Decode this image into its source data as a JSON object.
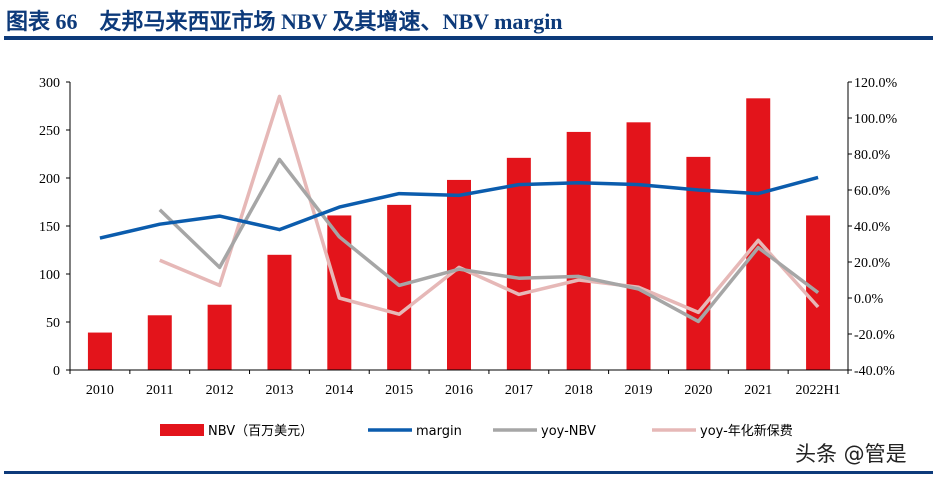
{
  "title": "图表 66　友邦马来西亚市场 NBV 及其增速、NBV margin",
  "watermark": "头条 @管是",
  "chart_data": {
    "type": "bar+line",
    "title": "",
    "categories": [
      "2010",
      "2011",
      "2012",
      "2013",
      "2014",
      "2015",
      "2016",
      "2017",
      "2018",
      "2019",
      "2020",
      "2021",
      "2022H1"
    ],
    "left_axis": {
      "ylim": [
        0,
        300
      ],
      "ticks": [
        "0",
        "50",
        "100",
        "150",
        "200",
        "250",
        "300"
      ]
    },
    "right_axis": {
      "ylim": [
        -40,
        120
      ],
      "ticks": [
        "-40.0%",
        "-20.0%",
        "0.0%",
        "20.0%",
        "40.0%",
        "60.0%",
        "80.0%",
        "100.0%",
        "120.0%"
      ]
    },
    "grid": false,
    "legend_position": "bottom",
    "series": [
      {
        "name": "NBV（百万美元）",
        "type": "bar",
        "axis": "left",
        "color": "#e3141b",
        "values": [
          39,
          57,
          68,
          120,
          161,
          172,
          198,
          221,
          248,
          258,
          222,
          283,
          161
        ]
      },
      {
        "name": "margin",
        "type": "line",
        "axis": "right",
        "color": "#0b5cad",
        "values": [
          33.3,
          41,
          45.5,
          38,
          50.5,
          58,
          57,
          63,
          64,
          63,
          60,
          58,
          67
        ]
      },
      {
        "name": "yoy-NBV",
        "type": "line",
        "axis": "right",
        "color": "#a6a6a6",
        "values": [
          null,
          49,
          17,
          77,
          34,
          7,
          16,
          11,
          12,
          5,
          -13,
          28,
          3
        ]
      },
      {
        "name": "yoy-年化新保费",
        "type": "line",
        "axis": "right",
        "color": "#e6b8b7",
        "values": [
          null,
          21,
          7,
          112,
          0,
          -9,
          17,
          2,
          10,
          6,
          -8,
          32,
          -5
        ]
      }
    ]
  }
}
